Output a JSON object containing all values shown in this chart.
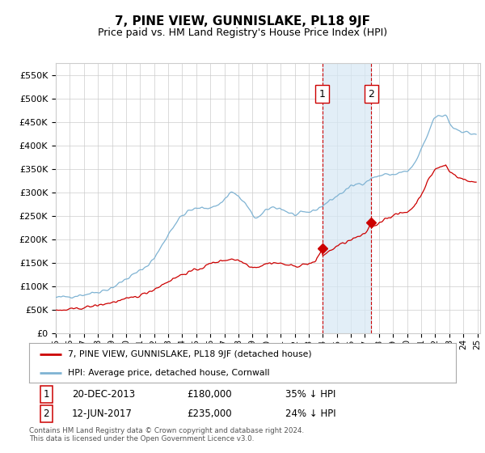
{
  "title": "7, PINE VIEW, GUNNISLAKE, PL18 9JF",
  "subtitle": "Price paid vs. HM Land Registry's House Price Index (HPI)",
  "ylim": [
    0,
    575000
  ],
  "yticks": [
    0,
    50000,
    100000,
    150000,
    200000,
    250000,
    300000,
    350000,
    400000,
    450000,
    500000,
    550000
  ],
  "background_color": "#ffffff",
  "grid_color": "#cccccc",
  "hpi_color": "#7fb3d3",
  "price_color": "#cc0000",
  "transaction1": {
    "date": "20-DEC-2013",
    "price": 180000,
    "label": "1",
    "pct": "35% ↓ HPI",
    "year": 2013.96
  },
  "transaction2": {
    "date": "12-JUN-2017",
    "price": 235000,
    "label": "2",
    "pct": "24% ↓ HPI",
    "year": 2017.45
  },
  "legend_label1": "7, PINE VIEW, GUNNISLAKE, PL18 9JF (detached house)",
  "legend_label2": "HPI: Average price, detached house, Cornwall",
  "footer": "Contains HM Land Registry data © Crown copyright and database right 2024.\nThis data is licensed under the Open Government Licence v3.0.",
  "xlim_left": 1995.0,
  "xlim_right": 2025.2
}
